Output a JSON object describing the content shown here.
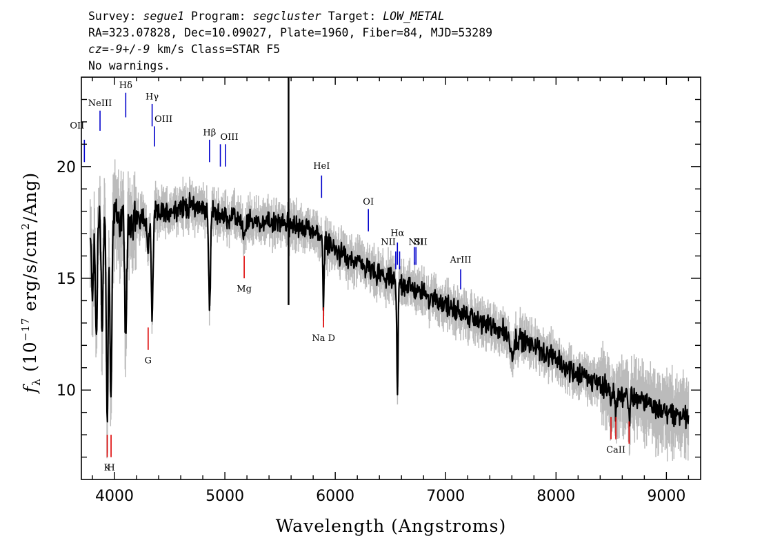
{
  "header": {
    "survey_label": "Survey:",
    "survey": "segue1",
    "program_label": "Program:",
    "program": "segcluster",
    "target_label": "Target:",
    "target": "LOW_METAL",
    "line2": "RA=323.07828, Dec=10.09027, Plate=1960, Fiber=84, MJD=53289",
    "cz_label": "cz",
    "cz_eq": "=",
    "cz_value": "-9+/-9",
    "cz_rest": " km/s Class=STAR F5",
    "line4": "No warnings."
  },
  "chart_data": {
    "type": "line",
    "xlabel": "Wavelength (Angstroms)",
    "ylabel_main": "f",
    "ylabel_sub": "λ",
    "ylabel_rest": " (10",
    "ylabel_exp": "−17",
    "ylabel_tail": " erg/s/cm",
    "ylabel_exp2": "2",
    "ylabel_end": "/Ang)",
    "xlim": [
      3700,
      9310
    ],
    "ylim": [
      6.0,
      24.0
    ],
    "x_ticks": [
      4000,
      5000,
      6000,
      7000,
      8000,
      9000
    ],
    "y_ticks": [
      10,
      15,
      20
    ],
    "x_minor_step": 200,
    "y_minor_step": 1,
    "colors": {
      "flux": "#000000",
      "error": "#bbbbbb",
      "emission": "#0000cc",
      "absorption": "#dd0000"
    },
    "continuum_anchors": [
      [
        3780,
        17.0
      ],
      [
        3900,
        17.8
      ],
      [
        4000,
        17.8
      ],
      [
        4100,
        17.5
      ],
      [
        4300,
        17.8
      ],
      [
        4500,
        18.0
      ],
      [
        4700,
        18.3
      ],
      [
        4900,
        18.0
      ],
      [
        5000,
        17.7
      ],
      [
        5200,
        17.6
      ],
      [
        5400,
        17.5
      ],
      [
        5600,
        17.4
      ],
      [
        5800,
        17.1
      ],
      [
        5900,
        16.8
      ],
      [
        6000,
        16.2
      ],
      [
        6200,
        15.7
      ],
      [
        6400,
        15.1
      ],
      [
        6600,
        14.8
      ],
      [
        6800,
        14.3
      ],
      [
        7000,
        13.8
      ],
      [
        7200,
        13.3
      ],
      [
        7400,
        12.9
      ],
      [
        7600,
        12.5
      ],
      [
        7800,
        12.0
      ],
      [
        8000,
        11.3
      ],
      [
        8200,
        10.7
      ],
      [
        8400,
        10.3
      ],
      [
        8600,
        9.8
      ],
      [
        8800,
        9.5
      ],
      [
        9000,
        9.0
      ],
      [
        9200,
        8.8
      ]
    ],
    "absorption_features": [
      [
        3800,
        2.5,
        10
      ],
      [
        3835,
        5.0,
        8
      ],
      [
        3889,
        5.0,
        8
      ],
      [
        3934,
        9.0,
        8
      ],
      [
        3968,
        8.5,
        8
      ],
      [
        4102,
        6.0,
        8
      ],
      [
        4305,
        1.5,
        10
      ],
      [
        4341,
        4.5,
        8
      ],
      [
        4861,
        4.5,
        8
      ],
      [
        5175,
        0.8,
        15
      ],
      [
        5893,
        3.0,
        6
      ],
      [
        6563,
        5.0,
        6
      ],
      [
        7600,
        0.8,
        20
      ],
      [
        8498,
        0.8,
        8
      ],
      [
        8542,
        1.0,
        8
      ],
      [
        8662,
        1.0,
        8
      ]
    ],
    "spike": {
      "x": 5577,
      "ymin": 13.8,
      "ymax": 24.0
    },
    "emission_lines": [
      {
        "label": "OII",
        "x": 3727,
        "y1": 20.2,
        "y2": 21.2,
        "ly": 21.7,
        "la": "end"
      },
      {
        "label": "NeIII",
        "x": 3869,
        "y1": 21.6,
        "y2": 22.5,
        "ly": 22.7,
        "la": "middle"
      },
      {
        "label": "Hδ",
        "x": 4102,
        "y1": 22.2,
        "y2": 23.3,
        "ly": 23.5,
        "la": "middle"
      },
      {
        "label": "Hγ",
        "x": 4341,
        "y1": 21.8,
        "y2": 22.8,
        "ly": 23.0,
        "la": "middle"
      },
      {
        "label": "OIII",
        "x": 4363,
        "y1": 20.9,
        "y2": 21.8,
        "ly": 22.0,
        "la": "start"
      },
      {
        "label": "Hβ",
        "x": 4861,
        "y1": 20.2,
        "y2": 21.2,
        "ly": 21.4,
        "la": "middle"
      },
      {
        "label": "OIII",
        "x": 4959,
        "y1": 20.0,
        "y2": 21.0,
        "ly": 21.2,
        "la": "start"
      },
      {
        "label": "",
        "x": 5007,
        "y1": 20.0,
        "y2": 21.0
      },
      {
        "label": "HeI",
        "x": 5876,
        "y1": 18.6,
        "y2": 19.6,
        "ly": 19.9,
        "la": "middle"
      },
      {
        "label": "OI",
        "x": 6300,
        "y1": 17.1,
        "y2": 18.1,
        "ly": 18.3,
        "la": "middle"
      },
      {
        "label": "Hα",
        "x": 6563,
        "y1": 15.6,
        "y2": 16.6,
        "ly": 16.9,
        "la": "middle"
      },
      {
        "label": "NII",
        "x": 6548,
        "y1": 15.4,
        "y2": 16.2,
        "ly": 16.5,
        "la": "end"
      },
      {
        "label": "",
        "x": 6583,
        "y1": 15.4,
        "y2": 16.2
      },
      {
        "label": "SII",
        "x": 6716,
        "y1": 15.6,
        "y2": 16.4,
        "ly": 16.5,
        "la": "start"
      },
      {
        "label": "NII",
        "x": 6731,
        "y1": 15.6,
        "y2": 16.4,
        "ly": 16.5,
        "la": "middle"
      },
      {
        "label": "ArIII",
        "x": 7136,
        "y1": 14.5,
        "y2": 15.4,
        "ly": 15.7,
        "la": "middle"
      }
    ],
    "absorption_lines": [
      {
        "label": "K",
        "x": 3934,
        "y1": 7.0,
        "y2": 8.0,
        "ly": 6.4,
        "la": "middle"
      },
      {
        "label": "H",
        "x": 3969,
        "y1": 7.0,
        "y2": 8.0,
        "ly": 6.4,
        "la": "middle"
      },
      {
        "label": "G",
        "x": 4305,
        "y1": 11.8,
        "y2": 12.8,
        "ly": 11.2,
        "la": "middle"
      },
      {
        "label": "Mg",
        "x": 5175,
        "y1": 15.0,
        "y2": 16.0,
        "ly": 14.4,
        "la": "middle"
      },
      {
        "label": "Na D",
        "x": 5894,
        "y1": 12.8,
        "y2": 13.7,
        "ly": 12.2,
        "la": "middle"
      },
      {
        "label": "",
        "x": 8498,
        "y1": 7.8,
        "y2": 8.8
      },
      {
        "label": "CaII",
        "x": 8542,
        "y1": 7.8,
        "y2": 8.8,
        "ly": 7.2,
        "la": "middle"
      },
      {
        "label": "",
        "x": 8662,
        "y1": 7.6,
        "y2": 8.6
      }
    ]
  }
}
